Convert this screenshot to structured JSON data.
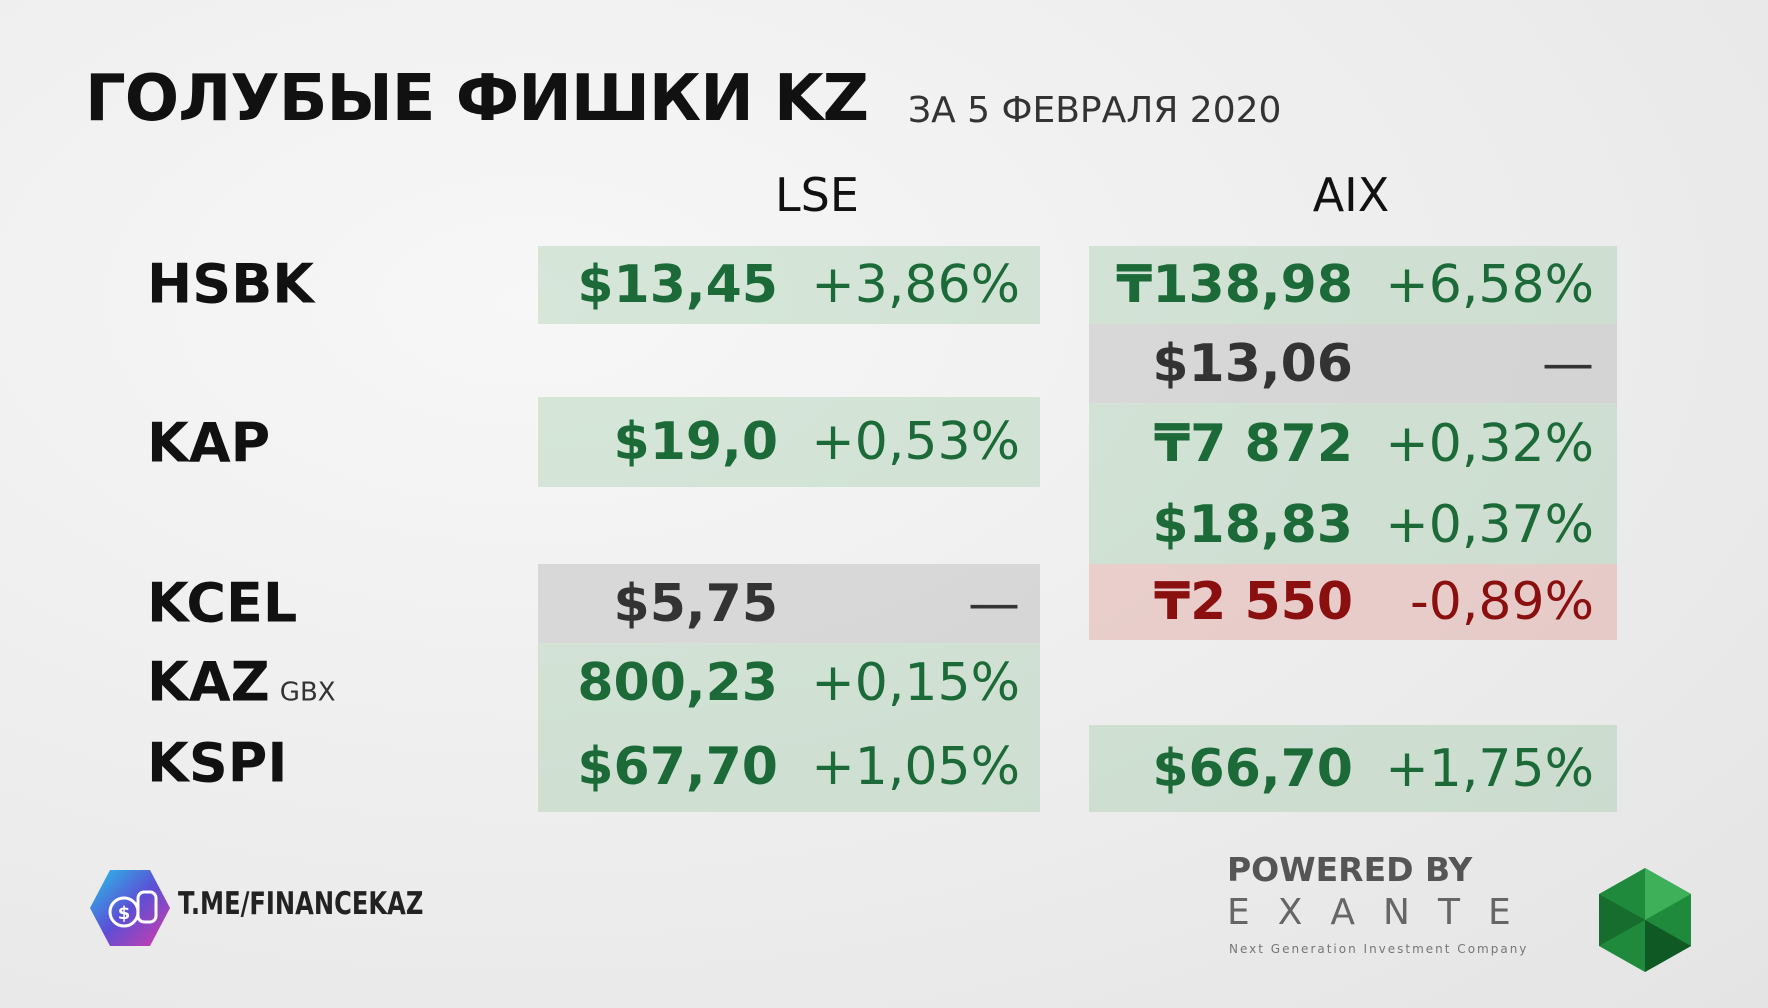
{
  "header": {
    "title": "ГОЛУБЫЕ ФИШКИ KZ",
    "subtitle": "ЗА 5 ФЕВРАЛЯ 2020"
  },
  "columns": [
    "LSE",
    "AIX"
  ],
  "rows": [
    {
      "ticker": "HSBK",
      "lse": [
        {
          "price": "$13,45",
          "change": "+3,86%",
          "color": "#1b6a37",
          "background": "rgba(128,190,145,0.28)"
        }
      ],
      "aix": [
        {
          "price": "₸138,98",
          "change": "+6,58%",
          "color": "#1b6a37",
          "background": "rgba(128,190,145,0.28)"
        },
        {
          "price": "$13,06",
          "change": "—",
          "color": "#333333",
          "background": "rgba(150,150,150,0.28)"
        }
      ]
    },
    {
      "ticker": "KAP",
      "lse": [
        {
          "price": "$19,0",
          "change": "+0,53%",
          "color": "#1b6a37",
          "background": "rgba(128,190,145,0.28)"
        }
      ],
      "aix": [
        {
          "price": "₸7 872",
          "change": "+0,32%",
          "color": "#1b6a37",
          "background": "rgba(128,190,145,0.28)"
        },
        {
          "price": "$18,83",
          "change": "+0,37%",
          "color": "#1b6a37",
          "background": "rgba(128,190,145,0.28)"
        }
      ]
    },
    {
      "ticker": "KCEL",
      "lse": [
        {
          "price": "$5,75",
          "change": "—",
          "color": "#333333",
          "background": "rgba(150,150,150,0.28)"
        }
      ],
      "aix": [
        {
          "price": "₸2 550",
          "change": "-0,89%",
          "color": "#8a0f0f",
          "background": "rgba(220,130,120,0.30)"
        }
      ]
    },
    {
      "ticker": "KAZ",
      "unit": "GBX",
      "lse": [
        {
          "price": "800,23",
          "change": "+0,15%",
          "color": "#1b6a37",
          "background": "rgba(128,190,145,0.28)"
        }
      ],
      "aix": []
    },
    {
      "ticker": "KSPI",
      "lse": [
        {
          "price": "$67,70",
          "change": "+1,05%",
          "color": "#1b6a37",
          "background": "rgba(128,190,145,0.28)"
        }
      ],
      "aix": [
        {
          "price": "$66,70",
          "change": "+1,75%",
          "color": "#1b6a37",
          "background": "rgba(128,190,145,0.28)"
        }
      ]
    }
  ],
  "footer": {
    "channel": "T.ME/FINANCEKAZ",
    "powered_by": "POWERED BY",
    "brand": "EXANTE",
    "tagline": "Next Generation Investment Company"
  }
}
